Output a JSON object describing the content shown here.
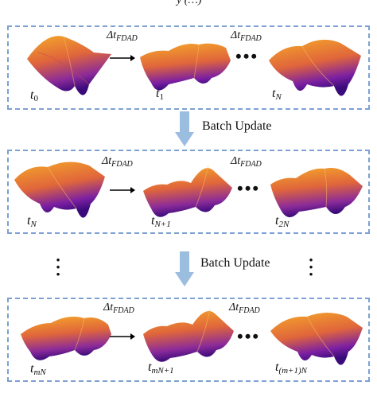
{
  "header_fragment": "y (…)",
  "panels": [
    {
      "times": [
        {
          "var": "t",
          "sub": "0"
        },
        {
          "var": "t",
          "sub": "1"
        },
        {
          "var": "t",
          "sub": "N"
        }
      ],
      "dt_labels": [
        "Δt",
        "Δt"
      ],
      "dt_sub": "FDAD",
      "ellipsis": "•••"
    },
    {
      "times": [
        {
          "var": "t",
          "sub": "N"
        },
        {
          "var": "t",
          "sub": "N+1"
        },
        {
          "var": "t",
          "sub": "2N"
        }
      ],
      "dt_labels": [
        "Δt",
        "Δt"
      ],
      "dt_sub": "FDAD",
      "ellipsis": "•••"
    },
    {
      "times": [
        {
          "var": "t",
          "sub": "mN"
        },
        {
          "var": "t",
          "sub": "mN+1"
        },
        {
          "var": "t",
          "sub": "(m+1)N"
        }
      ],
      "dt_labels": [
        "Δt",
        "Δt"
      ],
      "dt_sub": "FDAD",
      "ellipsis": "•••"
    }
  ],
  "batch_update_labels": [
    "Batch Update",
    "Batch Update"
  ],
  "vertical_ellipsis": "⋮",
  "colors": {
    "panel_border": "#7ea1d4",
    "down_arrow": "#9bbde0",
    "surface_high": "#f6a928",
    "surface_mid": "#e0663b",
    "surface_low": "#7b1fa2",
    "surface_deep": "#3b0a7a"
  }
}
